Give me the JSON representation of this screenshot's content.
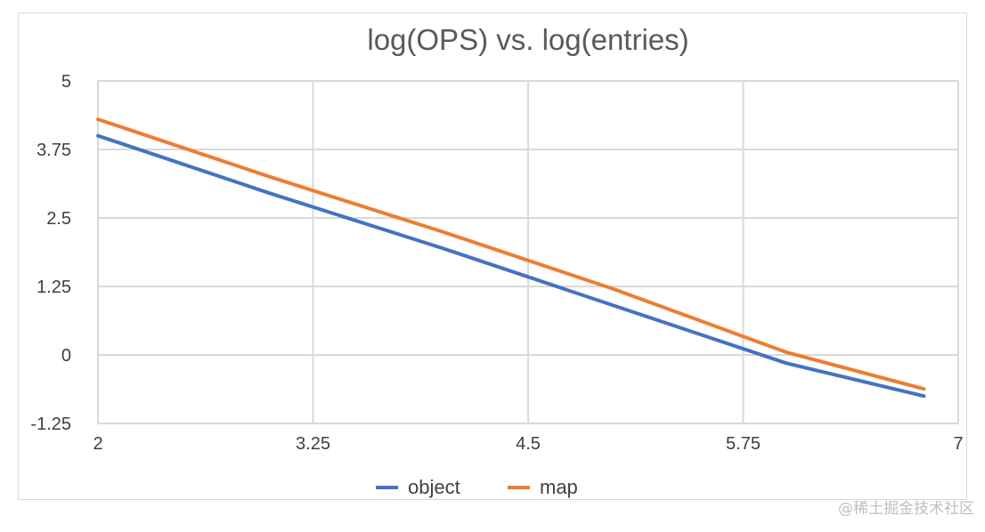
{
  "chart_data": {
    "type": "line",
    "title": "log(OPS) vs. log(entries)",
    "xlabel": "",
    "ylabel": "",
    "xlim": [
      2,
      7
    ],
    "ylim": [
      -1.25,
      5
    ],
    "x_ticks": [
      "2",
      "3.25",
      "4.5",
      "5.75",
      "7"
    ],
    "y_ticks": [
      "5",
      "3.75",
      "2.5",
      "1.25",
      "0",
      "-1.25"
    ],
    "grid": true,
    "legend_position": "bottom",
    "series": [
      {
        "name": "object",
        "color": "#4472C4",
        "x": [
          2,
          3,
          4,
          5,
          6,
          6.8
        ],
        "y": [
          4.0,
          2.95,
          1.95,
          0.9,
          -0.15,
          -0.75
        ]
      },
      {
        "name": "map",
        "color": "#ED7D31",
        "x": [
          2,
          3,
          4,
          5,
          6,
          6.8
        ],
        "y": [
          4.3,
          3.25,
          2.25,
          1.2,
          0.05,
          -0.62
        ]
      }
    ]
  },
  "watermark": "@稀土掘金技术社区"
}
